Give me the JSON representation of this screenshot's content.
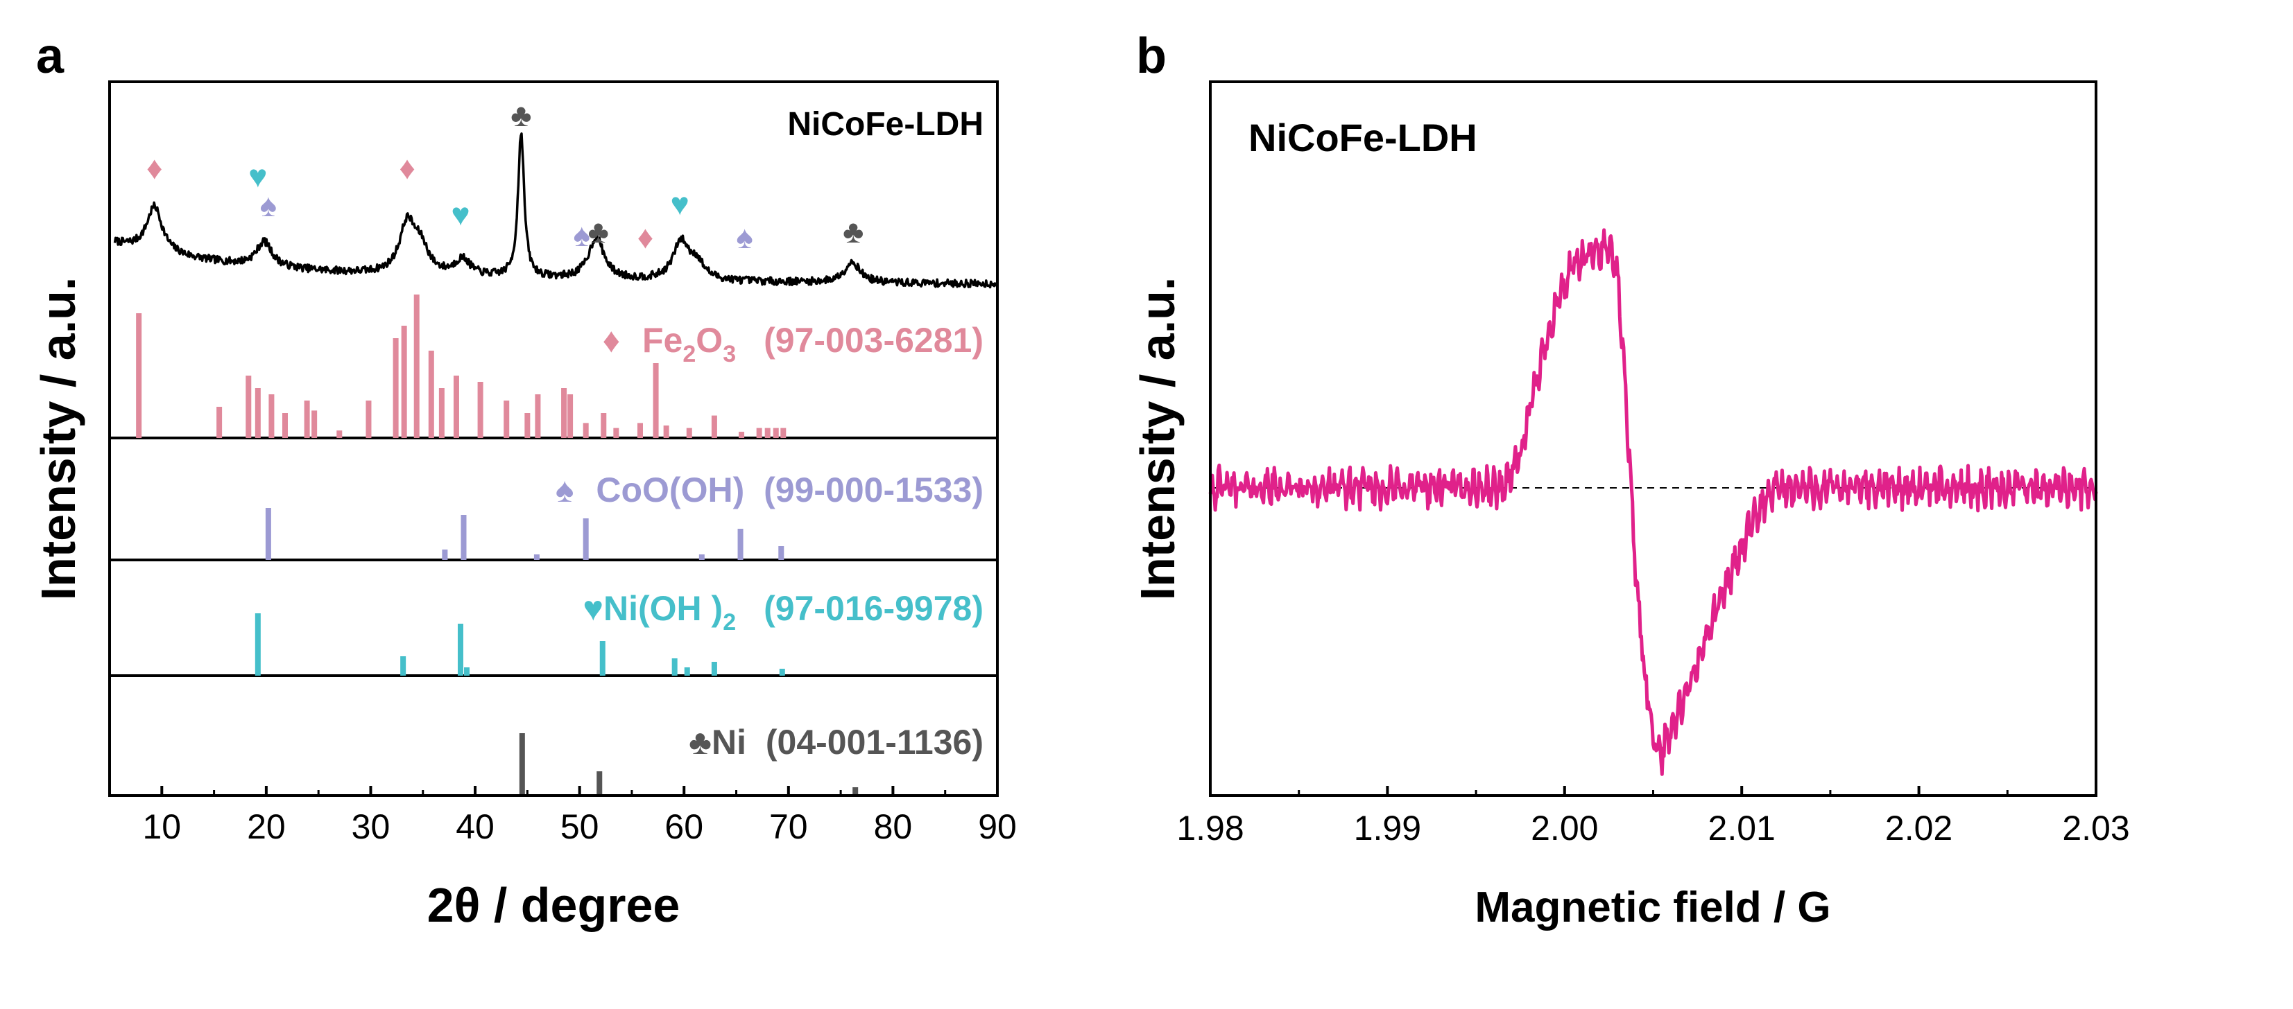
{
  "colors": {
    "fe2o3": "#e0899b",
    "cooh": "#9c9ad3",
    "nioh": "#45bfca",
    "ni": "#555555",
    "xrd": "#000000",
    "epr": "#e0218a"
  },
  "panel_a": {
    "label": "a",
    "sample": "NiCoFe-LDH",
    "fe2o3_legend": {
      "symbol": "♦",
      "pre": "Fe",
      "sub1": "2",
      "mid": "O",
      "sub2": "3",
      "code": "(97-003-6281)"
    },
    "cooh_legend": {
      "symbol": "♠",
      "name": "CoO(OH)",
      "code": "(99-000-1533)"
    },
    "nioh_legend": {
      "symbol": "♥",
      "name": "Ni(OH )",
      "sub": "2",
      "code": "(97-016-9978)"
    },
    "ni_legend": {
      "symbol": "♣",
      "name": "Ni",
      "code": "(04-001-1136)"
    }
  },
  "panel_b": {
    "label": "b",
    "sample": "NiCoFe-LDH"
  },
  "chart_data": [
    {
      "type": "line",
      "title": "NiCoFe-LDH",
      "xlabel": "2θ / degree",
      "ylabel": "Intensity / a.u.",
      "xlim": [
        5,
        90
      ],
      "xticks": [
        10,
        20,
        30,
        40,
        50,
        60,
        70,
        80,
        90
      ],
      "series": [
        {
          "name": "NiCoFe-LDH XRD",
          "peaks": [
            {
              "x": 9.3,
              "h": 0.55
            },
            {
              "x": 19.8,
              "h": 0.3
            },
            {
              "x": 33.5,
              "h": 0.6
            },
            {
              "x": 34.8,
              "h": 0.3
            },
            {
              "x": 38.8,
              "h": 0.2
            },
            {
              "x": 44.4,
              "h": 1.75
            },
            {
              "x": 51.6,
              "h": 0.5
            },
            {
              "x": 59.7,
              "h": 0.45
            },
            {
              "x": 61.2,
              "h": 0.2
            },
            {
              "x": 76.1,
              "h": 0.25
            }
          ]
        },
        {
          "name": "Fe2O3 (97-003-6281)",
          "sticks": [
            {
              "x": 7.8,
              "h": 1.0
            },
            {
              "x": 15.5,
              "h": 0.25
            },
            {
              "x": 18.3,
              "h": 0.5
            },
            {
              "x": 19.2,
              "h": 0.4
            },
            {
              "x": 20.5,
              "h": 0.35
            },
            {
              "x": 21.8,
              "h": 0.2
            },
            {
              "x": 23.9,
              "h": 0.3
            },
            {
              "x": 24.6,
              "h": 0.22
            },
            {
              "x": 27.0,
              "h": 0.06
            },
            {
              "x": 29.8,
              "h": 0.3
            },
            {
              "x": 32.4,
              "h": 0.8
            },
            {
              "x": 33.2,
              "h": 0.9
            },
            {
              "x": 34.4,
              "h": 1.15
            },
            {
              "x": 35.8,
              "h": 0.7
            },
            {
              "x": 36.8,
              "h": 0.4
            },
            {
              "x": 38.2,
              "h": 0.5
            },
            {
              "x": 40.5,
              "h": 0.45
            },
            {
              "x": 43.0,
              "h": 0.3
            },
            {
              "x": 45.0,
              "h": 0.2
            },
            {
              "x": 46.0,
              "h": 0.35
            },
            {
              "x": 48.5,
              "h": 0.4
            },
            {
              "x": 49.1,
              "h": 0.35
            },
            {
              "x": 50.6,
              "h": 0.12
            },
            {
              "x": 52.3,
              "h": 0.2
            },
            {
              "x": 53.5,
              "h": 0.08
            },
            {
              "x": 55.8,
              "h": 0.12
            },
            {
              "x": 57.3,
              "h": 0.6
            },
            {
              "x": 58.3,
              "h": 0.1
            },
            {
              "x": 60.5,
              "h": 0.08
            },
            {
              "x": 62.9,
              "h": 0.18
            },
            {
              "x": 65.5,
              "h": 0.05
            },
            {
              "x": 67.2,
              "h": 0.08
            },
            {
              "x": 68.0,
              "h": 0.08
            },
            {
              "x": 68.8,
              "h": 0.08
            },
            {
              "x": 69.5,
              "h": 0.08
            }
          ]
        },
        {
          "name": "CoO(OH) (99-000-1533)",
          "sticks": [
            {
              "x": 20.2,
              "h": 0.75
            },
            {
              "x": 37.1,
              "h": 0.15
            },
            {
              "x": 38.9,
              "h": 0.65
            },
            {
              "x": 45.9,
              "h": 0.08
            },
            {
              "x": 50.6,
              "h": 0.6
            },
            {
              "x": 61.7,
              "h": 0.08
            },
            {
              "x": 65.4,
              "h": 0.45
            },
            {
              "x": 69.3,
              "h": 0.2
            }
          ]
        },
        {
          "name": "Ni(OH)2 (97-016-9978)",
          "sticks": [
            {
              "x": 19.2,
              "h": 0.9
            },
            {
              "x": 33.1,
              "h": 0.28
            },
            {
              "x": 38.6,
              "h": 0.75
            },
            {
              "x": 39.2,
              "h": 0.12
            },
            {
              "x": 52.2,
              "h": 0.5
            },
            {
              "x": 59.1,
              "h": 0.25
            },
            {
              "x": 60.3,
              "h": 0.12
            },
            {
              "x": 62.9,
              "h": 0.2
            },
            {
              "x": 69.4,
              "h": 0.1
            }
          ]
        },
        {
          "name": "Ni (04-001-1136)",
          "sticks": [
            {
              "x": 44.5,
              "h": 0.9
            },
            {
              "x": 51.9,
              "h": 0.35
            },
            {
              "x": 76.4,
              "h": 0.12
            }
          ]
        }
      ],
      "markers": [
        {
          "symbol": "♦",
          "series": "Fe2O3",
          "x": 9.3
        },
        {
          "symbol": "♥",
          "series": "Ni(OH)2",
          "x": 19.2
        },
        {
          "symbol": "♠",
          "series": "CoO(OH)",
          "x": 20.2
        },
        {
          "symbol": "♦",
          "series": "Fe2O3",
          "x": 33.5
        },
        {
          "symbol": "♥",
          "series": "Ni(OH)2",
          "x": 38.6
        },
        {
          "symbol": "♣",
          "series": "Ni",
          "x": 44.4
        },
        {
          "symbol": "♠",
          "series": "CoO(OH)",
          "x": 50.2
        },
        {
          "symbol": "♣",
          "series": "Ni",
          "x": 51.8
        },
        {
          "symbol": "♦",
          "series": "Fe2O3",
          "x": 56.3
        },
        {
          "symbol": "♥",
          "series": "Ni(OH)2",
          "x": 59.6
        },
        {
          "symbol": "♠",
          "series": "CoO(OH)",
          "x": 65.8
        },
        {
          "symbol": "♣",
          "series": "Ni",
          "x": 76.2
        }
      ]
    },
    {
      "type": "line",
      "title": "NiCoFe-LDH",
      "xlabel": "Magnetic field / G",
      "ylabel": "Intensity / a.u.",
      "xlim": [
        1.98,
        2.03
      ],
      "xticks": [
        "1.98",
        "1.99",
        "2.00",
        "2.01",
        "2.02",
        "2.03"
      ],
      "baseline": 0,
      "series": [
        {
          "name": "NiCoFe-LDH EPR",
          "points": [
            [
              1.98,
              0.0
            ],
            [
              1.9965,
              0.0
            ],
            [
              1.9975,
              0.12
            ],
            [
              1.9985,
              0.42
            ],
            [
              1.9995,
              0.68
            ],
            [
              2.0005,
              0.82
            ],
            [
              2.0015,
              0.86
            ],
            [
              2.0025,
              0.9
            ],
            [
              2.003,
              0.78
            ],
            [
              2.0035,
              0.3
            ],
            [
              2.004,
              -0.3
            ],
            [
              2.0045,
              -0.68
            ],
            [
              2.005,
              -0.92
            ],
            [
              2.0055,
              -0.98
            ],
            [
              2.006,
              -0.9
            ],
            [
              2.007,
              -0.75
            ],
            [
              2.008,
              -0.55
            ],
            [
              2.009,
              -0.38
            ],
            [
              2.01,
              -0.22
            ],
            [
              2.011,
              -0.08
            ],
            [
              2.012,
              0.0
            ],
            [
              2.03,
              0.0
            ]
          ]
        }
      ]
    }
  ]
}
